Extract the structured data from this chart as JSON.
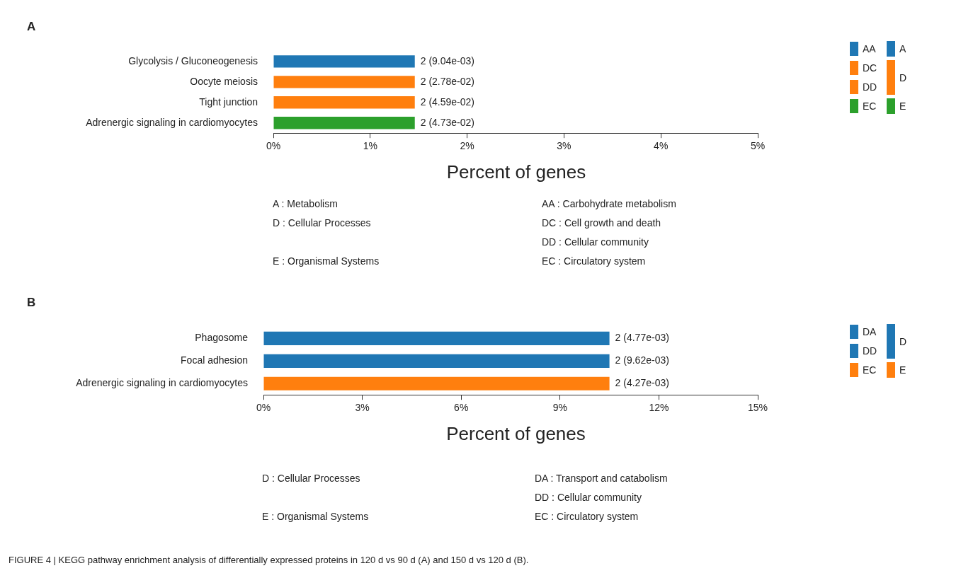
{
  "chart_data": [
    {
      "type": "bar",
      "orientation": "horizontal",
      "stacked": true,
      "title": "A",
      "xlabel": "Percent of genes",
      "categories": [
        "Glycolysis / Gluconeogenesis",
        "Oocyte meiosis",
        "Tight junction",
        "Adrenergic signaling in cardiomyocytes"
      ],
      "series": [
        {
          "name": "AA",
          "color": "#1f77b4",
          "values": [
            1.46,
            null,
            null,
            null
          ]
        },
        {
          "name": "DC",
          "color": "#ff7f0e",
          "values": [
            null,
            1.46,
            null,
            null
          ]
        },
        {
          "name": "DD",
          "color": "#ff7f0e",
          "values": [
            null,
            null,
            1.46,
            null
          ]
        },
        {
          "name": "EC",
          "color": "#2ca02c",
          "values": [
            null,
            null,
            null,
            1.46
          ]
        }
      ],
      "xlim": [
        0,
        5
      ],
      "xticks": [
        {
          "value": 0,
          "label": "0%"
        },
        {
          "value": 1,
          "label": "1%"
        },
        {
          "value": 2,
          "label": "2%"
        },
        {
          "value": 3,
          "label": "3%"
        },
        {
          "value": 4,
          "label": "4%"
        },
        {
          "value": 5,
          "label": "5%"
        }
      ],
      "legend": "right",
      "annotations": [
        "A",
        "D",
        "E",
        "A : Metabolism",
        "D : Cellular Processes",
        "E : Organismal Systems",
        "AA : Carbohydrate metabolism",
        "DC : Cell growth and death",
        "DD : Cellular community",
        "EC : Circulatory system",
        "2 (9.04e-03)",
        "2 (2.78e-02)",
        "2 (4.59e-02)",
        "2 (4.73e-02)"
      ]
    },
    {
      "type": "bar",
      "orientation": "horizontal",
      "stacked": true,
      "title": "B",
      "xlabel": "Percent of genes",
      "categories": [
        "Phagosome",
        "Focal adhesion",
        "Adrenergic signaling in cardiomyocytes"
      ],
      "series": [
        {
          "name": "DA",
          "color": "#1f77b4",
          "values": [
            10.5,
            null,
            null
          ]
        },
        {
          "name": "DD",
          "color": "#1f77b4",
          "values": [
            null,
            10.5,
            null
          ]
        },
        {
          "name": "EC",
          "color": "#ff7f0e",
          "values": [
            null,
            null,
            10.5
          ]
        }
      ],
      "xlim": [
        0,
        15
      ],
      "xticks": [
        {
          "value": 0,
          "label": "0%"
        },
        {
          "value": 3,
          "label": "3%"
        },
        {
          "value": 6,
          "label": "6%"
        },
        {
          "value": 9,
          "label": "9%"
        },
        {
          "value": 12,
          "label": "12%"
        },
        {
          "value": 15,
          "label": "15%"
        }
      ],
      "legend": "right",
      "annotations": [
        "D",
        "E",
        "D : Cellular Processes",
        "E : Organismal Systems",
        "DA : Transport and catabolism",
        "DD : Cellular community",
        "EC : Circulatory system",
        "FIGURE 4 | KEGG pathway enrichment analysis of differentially expressed proteins in 120 d vs 90 d (A) and 150 d vs 120 d (B).",
        "2 (4.77e-03)",
        "2 (9.62e-03)",
        "2 (4.27e-03)"
      ]
    }
  ]
}
